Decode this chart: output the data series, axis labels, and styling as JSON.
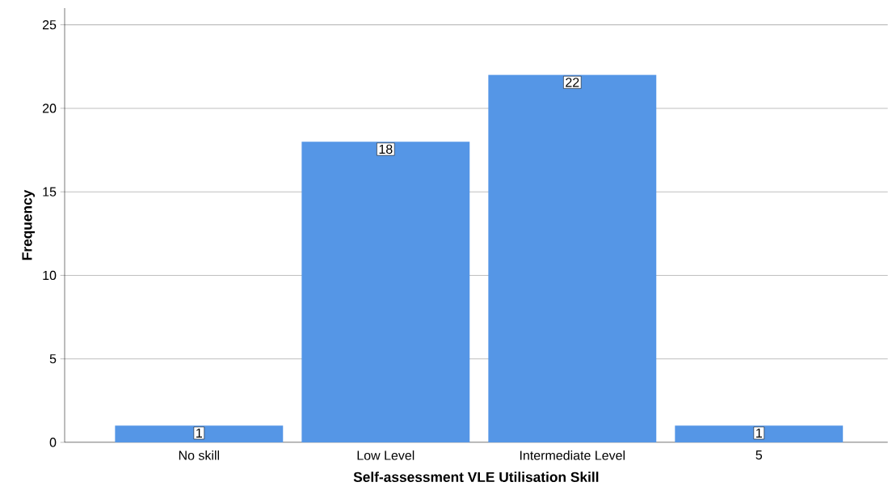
{
  "chart_data": {
    "type": "bar",
    "xlabel": "Self-assessment VLE Utilisation Skill",
    "ylabel": "Frequency",
    "categories": [
      "No skill",
      "Low Level",
      "Intermediate Level",
      "5"
    ],
    "values": [
      1,
      18,
      22,
      1
    ],
    "color": "#5596e6",
    "ylim": [
      0,
      26
    ],
    "yticks": [
      0,
      5,
      10,
      15,
      20,
      25
    ],
    "grid": "y",
    "data_labels": true
  }
}
